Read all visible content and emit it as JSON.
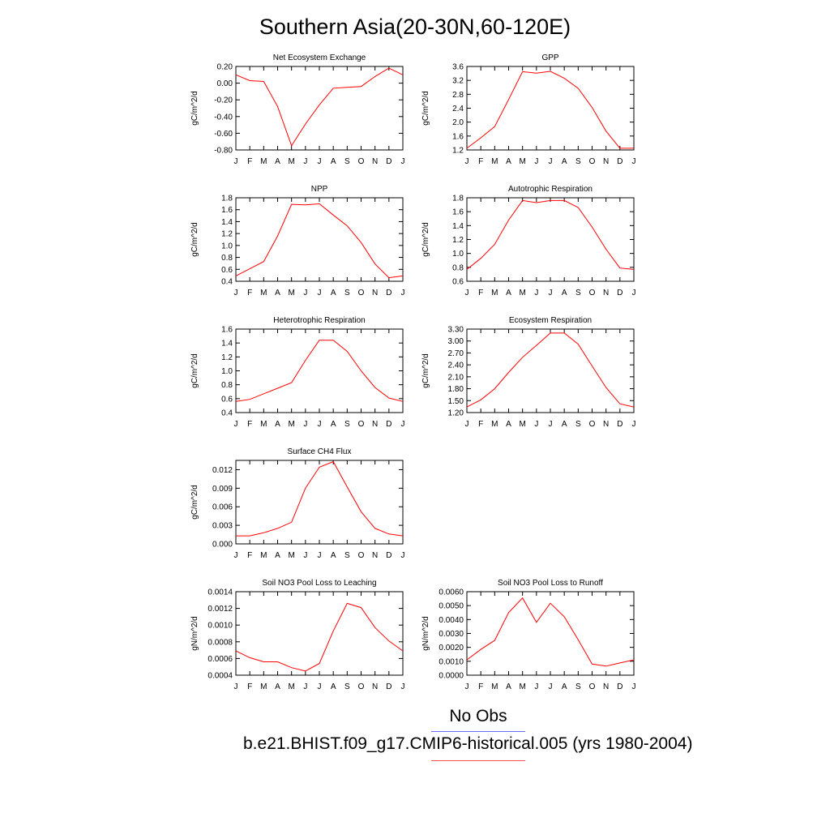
{
  "title": "Southern Asia(20-30N,60-120E)",
  "month_labels": [
    "J",
    "F",
    "M",
    "A",
    "M",
    "J",
    "J",
    "A",
    "S",
    "O",
    "N",
    "D",
    "J"
  ],
  "series_color": "#ff0000",
  "legend": {
    "obs_label": "No Obs",
    "obs_color": "#6a6aff",
    "model_label": "b.e21.BHIST.f09_g17.CMIP6-historical.005 (yrs 1980-2004)",
    "model_color": "#ff5050"
  },
  "chart_data": [
    {
      "type": "line",
      "title": "Net Ecosystem Exchange",
      "ylabel": "gC/m^2/d",
      "ylim": [
        -0.8,
        0.2
      ],
      "yticks": [
        -0.8,
        -0.6,
        -0.4,
        -0.2,
        0.0,
        0.2
      ],
      "ytick_labels": [
        "-0.80",
        "-0.60",
        "-0.40",
        "-0.20",
        "0.00",
        "0.20"
      ],
      "values": [
        0.1,
        0.03,
        0.02,
        -0.28,
        -0.75,
        -0.49,
        -0.26,
        -0.06,
        -0.05,
        -0.04,
        0.08,
        0.18,
        0.1
      ]
    },
    {
      "type": "line",
      "title": "GPP",
      "ylabel": "gC/m^2/d",
      "ylim": [
        1.2,
        3.6
      ],
      "yticks": [
        1.2,
        1.6,
        2.0,
        2.4,
        2.8,
        3.2,
        3.6
      ],
      "ytick_labels": [
        "1.2",
        "1.6",
        "2.0",
        "2.4",
        "2.8",
        "3.2",
        "3.6"
      ],
      "values": [
        1.25,
        1.55,
        1.87,
        2.65,
        3.45,
        3.41,
        3.46,
        3.26,
        2.97,
        2.42,
        1.74,
        1.25,
        1.25
      ]
    },
    {
      "type": "line",
      "title": "NPP",
      "ylabel": "gC/m^2/d",
      "ylim": [
        0.4,
        1.8
      ],
      "yticks": [
        0.4,
        0.6,
        0.8,
        1.0,
        1.2,
        1.4,
        1.6,
        1.8
      ],
      "ytick_labels": [
        "0.4",
        "0.6",
        "0.8",
        "1.0",
        "1.2",
        "1.4",
        "1.6",
        "1.8"
      ],
      "values": [
        0.49,
        0.61,
        0.73,
        1.16,
        1.69,
        1.68,
        1.7,
        1.51,
        1.33,
        1.05,
        0.69,
        0.46,
        0.49
      ]
    },
    {
      "type": "line",
      "title": "Autotrophic Respiration",
      "ylabel": "gC/m^2/d",
      "ylim": [
        0.6,
        1.8
      ],
      "yticks": [
        0.6,
        0.8,
        1.0,
        1.2,
        1.4,
        1.6,
        1.8
      ],
      "ytick_labels": [
        "0.6",
        "0.8",
        "1.0",
        "1.2",
        "1.4",
        "1.6",
        "1.8"
      ],
      "values": [
        0.77,
        0.93,
        1.13,
        1.48,
        1.76,
        1.73,
        1.76,
        1.76,
        1.66,
        1.38,
        1.06,
        0.79,
        0.77
      ]
    },
    {
      "type": "line",
      "title": "Heterotrophic Respiration",
      "ylabel": "gC/m^2/d",
      "ylim": [
        0.4,
        1.6
      ],
      "yticks": [
        0.4,
        0.6,
        0.8,
        1.0,
        1.2,
        1.4,
        1.6
      ],
      "ytick_labels": [
        "0.4",
        "0.6",
        "0.8",
        "1.0",
        "1.2",
        "1.4",
        "1.6"
      ],
      "values": [
        0.56,
        0.59,
        0.67,
        0.75,
        0.83,
        1.15,
        1.44,
        1.44,
        1.28,
        1.0,
        0.76,
        0.61,
        0.56
      ]
    },
    {
      "type": "line",
      "title": "Ecosystem Respiration",
      "ylabel": "gC/m^2/d",
      "ylim": [
        1.2,
        3.3
      ],
      "yticks": [
        1.2,
        1.5,
        1.8,
        2.1,
        2.4,
        2.7,
        3.0,
        3.3
      ],
      "ytick_labels": [
        "1.20",
        "1.50",
        "1.80",
        "2.10",
        "2.40",
        "2.70",
        "3.00",
        "3.30"
      ],
      "values": [
        1.34,
        1.52,
        1.8,
        2.21,
        2.59,
        2.89,
        3.2,
        3.2,
        2.92,
        2.37,
        1.83,
        1.42,
        1.34
      ]
    },
    {
      "type": "line",
      "title": "Surface CH4 Flux",
      "ylabel": "gC/m^2/d",
      "ylim": [
        0.0,
        0.0135
      ],
      "yticks": [
        0.0,
        0.003,
        0.006,
        0.009,
        0.012
      ],
      "ytick_labels": [
        "0.000",
        "0.003",
        "0.006",
        "0.009",
        "0.012"
      ],
      "values": [
        0.0013,
        0.0013,
        0.0018,
        0.0025,
        0.0035,
        0.009,
        0.0124,
        0.0133,
        0.0092,
        0.0052,
        0.0025,
        0.0016,
        0.0013
      ]
    },
    {
      "type": "line",
      "title": "Soil NO3 Pool Loss to Leaching",
      "ylabel": "gN/m^2/d",
      "ylim": [
        0.0004,
        0.0014
      ],
      "yticks": [
        0.0004,
        0.0006,
        0.0008,
        0.001,
        0.0012,
        0.0014
      ],
      "ytick_labels": [
        "0.0004",
        "0.0006",
        "0.0008",
        "0.0010",
        "0.0012",
        "0.0014"
      ],
      "values": [
        0.00069,
        0.00061,
        0.00056,
        0.00056,
        0.00049,
        0.00045,
        0.00054,
        0.00093,
        0.00126,
        0.00121,
        0.00097,
        0.00081,
        0.00069
      ]
    },
    {
      "type": "line",
      "title": "Soil NO3 Pool Loss to Runoff",
      "ylabel": "gN/m^2/d",
      "ylim": [
        0.0,
        0.006
      ],
      "yticks": [
        0.0,
        0.001,
        0.002,
        0.003,
        0.004,
        0.005,
        0.006
      ],
      "ytick_labels": [
        "0.0000",
        "0.0010",
        "0.0020",
        "0.0030",
        "0.0040",
        "0.0050",
        "0.0060"
      ],
      "values": [
        0.0011,
        0.00185,
        0.0025,
        0.0045,
        0.00555,
        0.0038,
        0.00517,
        0.0042,
        0.00255,
        0.0008,
        0.00065,
        0.00088,
        0.0011
      ]
    }
  ]
}
